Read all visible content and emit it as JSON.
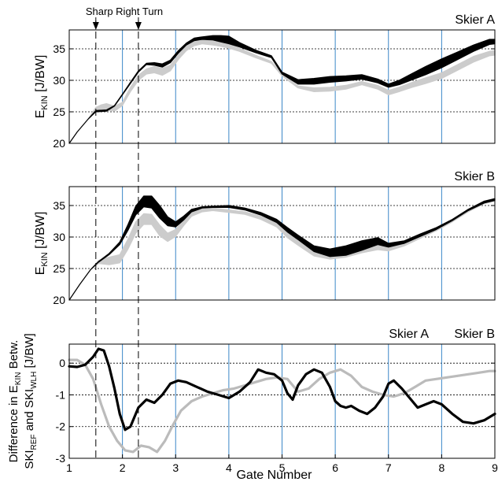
{
  "chart_data": [
    {
      "type": "area",
      "title": "Skier A",
      "ylabel": "E",
      "ylabel_sub": "KIN",
      "ylabel_unit": "[J/BW]",
      "xlim": [
        1,
        9
      ],
      "ylim": [
        20,
        38
      ],
      "yticks": [
        20,
        25,
        30,
        35
      ],
      "gate_lines": [
        2,
        3,
        4,
        5,
        6,
        7,
        8
      ],
      "series": [
        {
          "color": "#000000",
          "x": [
            1.0,
            1.15,
            1.35,
            1.5,
            1.7,
            1.85,
            2.0,
            2.15,
            2.3,
            2.45,
            2.6,
            2.75,
            2.9,
            3.05,
            3.2,
            3.35,
            3.5,
            3.7,
            3.85,
            4.0,
            4.2,
            4.5,
            4.8,
            5.0,
            5.3,
            5.6,
            5.9,
            6.2,
            6.5,
            6.8,
            7.0,
            7.2,
            7.45,
            7.7,
            8.0,
            8.3,
            8.6,
            8.9,
            9.0
          ],
          "lower": [
            20.0,
            21.8,
            23.8,
            25.0,
            25.1,
            25.9,
            27.7,
            29.5,
            31.3,
            32.5,
            32.4,
            32.1,
            32.8,
            34.3,
            35.6,
            36.3,
            36.5,
            36.4,
            36.1,
            35.8,
            35.3,
            34.4,
            33.6,
            31.0,
            29.4,
            29.4,
            29.7,
            29.9,
            30.2,
            29.6,
            28.9,
            29.3,
            30.1,
            30.9,
            32.0,
            33.3,
            34.6,
            35.7,
            35.8
          ],
          "upper": [
            20.0,
            21.8,
            23.8,
            25.2,
            25.3,
            26.0,
            27.8,
            29.7,
            31.5,
            32.7,
            32.8,
            32.6,
            33.2,
            34.7,
            35.9,
            36.7,
            36.9,
            37.1,
            37.1,
            37.0,
            36.0,
            34.8,
            33.9,
            31.3,
            30.1,
            30.3,
            30.6,
            30.7,
            30.9,
            30.2,
            29.4,
            30.0,
            31.1,
            32.2,
            33.4,
            34.5,
            35.6,
            36.5,
            36.5
          ]
        },
        {
          "color": "#cccccc",
          "x": [
            1.0,
            1.15,
            1.35,
            1.5,
            1.6,
            1.7,
            1.85,
            2.0,
            2.15,
            2.3,
            2.45,
            2.6,
            2.75,
            2.9,
            3.05,
            3.2,
            3.35,
            3.5,
            3.7,
            3.85,
            4.0,
            4.2,
            4.5,
            4.8,
            5.0,
            5.3,
            5.6,
            5.9,
            6.2,
            6.5,
            6.8,
            7.0,
            7.2,
            7.45,
            7.7,
            8.0,
            8.3,
            8.6,
            8.9,
            9.0
          ],
          "lower": [
            20.0,
            21.8,
            23.8,
            25.1,
            25.3,
            25.3,
            25.1,
            26.0,
            28.2,
            30.0,
            31.0,
            31.2,
            30.8,
            31.5,
            33.3,
            34.7,
            35.5,
            35.8,
            35.6,
            35.4,
            35.1,
            34.6,
            33.6,
            32.7,
            30.7,
            28.8,
            28.2,
            28.3,
            28.6,
            29.3,
            28.6,
            27.7,
            28.2,
            28.9,
            29.5,
            30.3,
            31.6,
            32.9,
            33.9,
            34.0
          ],
          "upper": [
            20.0,
            21.8,
            23.8,
            25.7,
            26.1,
            26.3,
            25.9,
            26.5,
            28.9,
            30.8,
            31.8,
            32.2,
            31.9,
            32.4,
            34.0,
            35.5,
            36.3,
            36.4,
            36.2,
            36.0,
            35.7,
            35.1,
            34.0,
            33.0,
            31.0,
            29.1,
            28.8,
            28.9,
            29.2,
            29.8,
            29.2,
            28.4,
            28.9,
            29.7,
            30.4,
            31.2,
            32.5,
            33.8,
            34.6,
            34.7
          ]
        }
      ]
    },
    {
      "type": "area",
      "title": "Skier B",
      "ylabel": "E",
      "ylabel_sub": "KIN",
      "ylabel_unit": "[J/BW]",
      "xlim": [
        1,
        9
      ],
      "ylim": [
        20,
        38
      ],
      "yticks": [
        20,
        25,
        30,
        35
      ],
      "gate_lines": [
        2,
        3,
        4,
        5,
        6,
        7,
        8
      ],
      "series": [
        {
          "color": "#000000",
          "x": [
            1.0,
            1.2,
            1.4,
            1.55,
            1.75,
            1.95,
            2.1,
            2.25,
            2.4,
            2.55,
            2.7,
            2.85,
            3.0,
            3.15,
            3.3,
            3.5,
            3.7,
            4.0,
            4.3,
            4.6,
            4.9,
            5.1,
            5.3,
            5.6,
            5.9,
            6.2,
            6.5,
            6.8,
            7.0,
            7.3,
            7.6,
            7.9,
            8.2,
            8.5,
            8.8,
            9.0
          ],
          "lower": [
            20.0,
            22.5,
            24.8,
            26.0,
            27.2,
            28.8,
            31.0,
            33.5,
            34.8,
            34.6,
            33.0,
            31.8,
            31.6,
            32.7,
            34.0,
            34.6,
            34.7,
            34.7,
            34.3,
            33.5,
            32.3,
            30.8,
            29.6,
            27.7,
            26.9,
            27.1,
            27.9,
            28.8,
            28.4,
            29.0,
            30.1,
            31.2,
            32.6,
            34.2,
            35.4,
            35.8
          ],
          "upper": [
            20.0,
            22.5,
            24.8,
            26.1,
            27.4,
            29.2,
            31.9,
            34.9,
            36.5,
            36.5,
            35.0,
            33.2,
            32.4,
            33.3,
            34.4,
            34.8,
            34.9,
            35.0,
            34.6,
            33.9,
            32.8,
            31.5,
            30.3,
            28.6,
            28.1,
            28.6,
            29.4,
            29.9,
            29.0,
            29.4,
            30.5,
            31.5,
            32.8,
            34.4,
            35.7,
            36.1
          ]
        },
        {
          "color": "#cccccc",
          "x": [
            1.0,
            1.2,
            1.4,
            1.55,
            1.75,
            1.95,
            2.1,
            2.25,
            2.4,
            2.55,
            2.7,
            2.85,
            3.0,
            3.15,
            3.3,
            3.5,
            3.7,
            4.0,
            4.3,
            4.6,
            4.9,
            5.1,
            5.3,
            5.6,
            5.9,
            6.2,
            6.5,
            6.8,
            7.0,
            7.3,
            7.6,
            7.9,
            8.2,
            8.5,
            8.8,
            9.0
          ],
          "lower": [
            20.0,
            22.5,
            24.8,
            25.8,
            25.6,
            25.9,
            28.0,
            30.6,
            32.0,
            32.0,
            30.2,
            29.3,
            30.1,
            31.8,
            33.3,
            34.0,
            34.2,
            33.9,
            33.6,
            32.8,
            31.6,
            29.9,
            28.7,
            27.0,
            26.5,
            26.8,
            27.5,
            28.0,
            27.8,
            28.6,
            29.8,
            31.0,
            32.4,
            34.0,
            35.3,
            35.7
          ],
          "upper": [
            20.0,
            22.5,
            24.8,
            26.3,
            26.8,
            27.2,
            29.6,
            32.4,
            33.7,
            33.6,
            31.9,
            30.6,
            31.2,
            32.7,
            34.0,
            34.5,
            34.6,
            34.3,
            34.0,
            33.3,
            32.2,
            30.6,
            29.5,
            27.9,
            27.5,
            27.8,
            28.4,
            28.7,
            28.5,
            29.1,
            30.2,
            31.3,
            32.7,
            34.3,
            35.6,
            36.0
          ]
        }
      ]
    },
    {
      "type": "line",
      "title": "",
      "legend": [
        "Skier A",
        "Skier B"
      ],
      "legend_colors": [
        "#000000",
        "#bbbbbb"
      ],
      "ylabel_line1": "Difference in E",
      "ylabel_line1_sub": "KIN",
      "ylabel_line1_end": " Betw.",
      "ylabel_line2_a": "SKI",
      "ylabel_line2_sub1": "REF",
      "ylabel_line2_b": " and SKI",
      "ylabel_line2_sub2": "WLH",
      "ylabel_line2_c": " [J/BW]",
      "xlabel": "Gate Number",
      "xlim": [
        1,
        9
      ],
      "ylim": [
        -3,
        0.6
      ],
      "yticks": [
        -3,
        -2,
        -1,
        0
      ],
      "xticks": [
        1,
        2,
        3,
        4,
        5,
        6,
        7,
        8,
        9
      ],
      "gate_lines": [
        2,
        3,
        4,
        5,
        6,
        7,
        8
      ],
      "series": [
        {
          "name": "Skier A",
          "color": "#000000",
          "x": [
            1.0,
            1.15,
            1.3,
            1.45,
            1.55,
            1.65,
            1.75,
            1.85,
            1.95,
            2.05,
            2.15,
            2.3,
            2.45,
            2.6,
            2.75,
            2.9,
            3.05,
            3.2,
            3.4,
            3.6,
            3.8,
            4.0,
            4.2,
            4.4,
            4.55,
            4.7,
            4.85,
            5.0,
            5.1,
            5.2,
            5.3,
            5.45,
            5.6,
            5.75,
            5.9,
            6.0,
            6.1,
            6.2,
            6.3,
            6.45,
            6.6,
            6.75,
            6.9,
            7.0,
            7.1,
            7.25,
            7.4,
            7.55,
            7.7,
            7.85,
            8.0,
            8.2,
            8.4,
            8.6,
            8.8,
            9.0
          ],
          "y": [
            -0.1,
            -0.12,
            -0.05,
            0.2,
            0.45,
            0.4,
            -0.1,
            -0.8,
            -1.6,
            -2.1,
            -2.0,
            -1.4,
            -1.15,
            -1.25,
            -1.0,
            -0.65,
            -0.55,
            -0.6,
            -0.75,
            -0.9,
            -1.0,
            -1.1,
            -0.9,
            -0.6,
            -0.2,
            -0.3,
            -0.35,
            -0.55,
            -0.95,
            -1.15,
            -0.7,
            -0.35,
            -0.2,
            -0.3,
            -0.75,
            -1.2,
            -1.35,
            -1.4,
            -1.35,
            -1.5,
            -1.6,
            -1.4,
            -1.05,
            -0.65,
            -0.55,
            -0.8,
            -1.1,
            -1.4,
            -1.3,
            -1.2,
            -1.3,
            -1.6,
            -1.85,
            -1.9,
            -1.8,
            -1.6
          ]
        },
        {
          "name": "Skier B",
          "color": "#bbbbbb",
          "x": [
            1.0,
            1.15,
            1.3,
            1.45,
            1.6,
            1.75,
            1.9,
            2.05,
            2.2,
            2.35,
            2.5,
            2.65,
            2.8,
            2.95,
            3.1,
            3.3,
            3.5,
            3.7,
            3.9,
            4.1,
            4.3,
            4.5,
            4.7,
            4.9,
            5.1,
            5.3,
            5.5,
            5.7,
            5.9,
            6.1,
            6.3,
            6.5,
            6.7,
            6.9,
            7.1,
            7.3,
            7.5,
            7.7,
            7.9,
            8.1,
            8.3,
            8.5,
            8.7,
            8.9,
            9.0
          ],
          "y": [
            0.1,
            0.1,
            -0.05,
            -0.5,
            -1.3,
            -2.0,
            -2.45,
            -2.75,
            -2.8,
            -2.6,
            -2.65,
            -2.8,
            -2.45,
            -1.95,
            -1.5,
            -1.2,
            -1.05,
            -0.95,
            -0.85,
            -0.8,
            -0.7,
            -0.6,
            -0.5,
            -0.45,
            -0.5,
            -0.9,
            -0.8,
            -0.5,
            -0.3,
            -0.2,
            -0.4,
            -0.75,
            -0.9,
            -1.0,
            -1.05,
            -0.95,
            -0.75,
            -0.55,
            -0.5,
            -0.45,
            -0.4,
            -0.35,
            -0.3,
            -0.25,
            -0.25
          ]
        }
      ]
    }
  ],
  "annotations": {
    "sharp_turn_label": "Sharp Right Turn",
    "sharp_turn_gates": [
      1.5,
      2.3
    ]
  }
}
